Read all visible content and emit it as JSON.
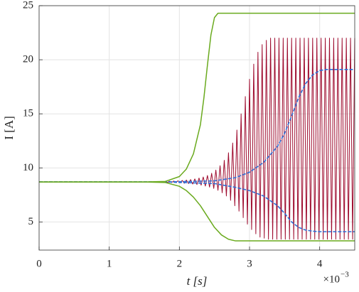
{
  "chart_data": {
    "type": "line",
    "xlabel": "t [s]",
    "ylabel": "I [A]",
    "x_scale_base": "×10",
    "x_scale_exponent": "−3",
    "xlim": [
      0,
      4.5
    ],
    "ylim": [
      2.4,
      25
    ],
    "xticks": [
      0,
      1,
      2,
      3,
      4
    ],
    "yticks": [
      5,
      10,
      15,
      20,
      25
    ],
    "grid": true,
    "series": [
      {
        "color": "#9e0b2e",
        "width": 1,
        "x": [
          0,
          1.77,
          1.8,
          1.83,
          1.86,
          1.89,
          1.92,
          1.95,
          1.98,
          2.01,
          2.04,
          2.07,
          2.1,
          2.13,
          2.16,
          2.19,
          2.22,
          2.25,
          2.28,
          2.31,
          2.34,
          2.37,
          2.4,
          2.43,
          2.46,
          2.49,
          2.52,
          2.55,
          2.58,
          2.61,
          2.64,
          2.67,
          2.7,
          2.73,
          2.76,
          2.79,
          2.82,
          2.85,
          2.88,
          2.91,
          2.94,
          2.97,
          3.0,
          3.03,
          3.06,
          3.09,
          3.12,
          3.15,
          3.18,
          3.21,
          3.24,
          3.27,
          3.3,
          3.33,
          3.36,
          3.39,
          3.42,
          3.45,
          3.48,
          3.51,
          3.54,
          3.57,
          3.6,
          3.63,
          3.66,
          3.69,
          3.72,
          3.75,
          3.78,
          3.81,
          3.84,
          3.87,
          3.9,
          3.93,
          3.96,
          3.99,
          4.02,
          4.05,
          4.08,
          4.11,
          4.14,
          4.17,
          4.2,
          4.23,
          4.26,
          4.29,
          4.32,
          4.35,
          4.38,
          4.41,
          4.44,
          4.47,
          4.5
        ],
        "values": [
          8.7,
          8.7,
          8.76,
          8.66,
          8.77,
          8.65,
          8.79,
          8.63,
          8.81,
          8.61,
          8.84,
          8.58,
          8.88,
          8.55,
          8.92,
          8.51,
          8.98,
          8.46,
          9.06,
          8.4,
          9.16,
          8.32,
          9.3,
          8.22,
          9.5,
          8.1,
          9.8,
          7.93,
          10.2,
          7.7,
          10.7,
          7.4,
          11.4,
          7.0,
          12.3,
          6.5,
          13.5,
          6.0,
          15.0,
          5.4,
          16.6,
          4.8,
          18.2,
          4.3,
          19.6,
          3.9,
          20.7,
          3.6,
          21.4,
          3.5,
          21.8,
          3.4,
          22.0,
          3.4,
          22.0,
          3.4,
          22.0,
          3.4,
          22.0,
          3.4,
          22.0,
          3.4,
          22.0,
          3.4,
          22.0,
          3.4,
          22.0,
          3.4,
          22.0,
          3.4,
          22.0,
          3.4,
          22.0,
          3.4,
          22.0,
          3.4,
          22.0,
          3.4,
          22.0,
          3.4,
          22.0,
          3.4,
          22.0,
          3.4,
          22.0,
          3.4,
          22.0,
          3.4,
          22.0,
          3.4,
          22.0,
          3.4,
          22.0
        ]
      },
      {
        "color": "#2f6fd6",
        "width": 1.6,
        "dash": true,
        "x": [
          0,
          1.8,
          2.5,
          2.8,
          3.0,
          3.2,
          3.4,
          3.5,
          3.6,
          3.7,
          3.8,
          3.9,
          4.0,
          4.1,
          4.5
        ],
        "values": [
          8.7,
          8.7,
          8.8,
          9.1,
          9.6,
          10.5,
          12.0,
          13.2,
          14.8,
          16.5,
          17.8,
          18.6,
          19.0,
          19.1,
          19.1
        ]
      },
      {
        "color": "#2f6fd6",
        "width": 1.6,
        "dash": true,
        "x": [
          0,
          1.8,
          2.5,
          2.8,
          3.0,
          3.2,
          3.4,
          3.5,
          3.6,
          3.7,
          3.8,
          3.9,
          4.0,
          4.1,
          4.5
        ],
        "values": [
          8.7,
          8.7,
          8.55,
          8.2,
          7.9,
          7.4,
          6.5,
          5.8,
          5.0,
          4.5,
          4.25,
          4.15,
          4.1,
          4.1,
          4.1
        ]
      },
      {
        "color": "#6aaa1e",
        "width": 1.5,
        "x": [
          0,
          1.5,
          1.8,
          2.0,
          2.1,
          2.2,
          2.3,
          2.35,
          2.4,
          2.45,
          2.5,
          2.55,
          2.6,
          4.5
        ],
        "values": [
          8.7,
          8.7,
          8.75,
          9.2,
          9.9,
          11.3,
          14.0,
          16.5,
          19.5,
          22.3,
          23.9,
          24.3,
          24.3,
          24.3
        ]
      },
      {
        "color": "#6aaa1e",
        "width": 1.5,
        "x": [
          0,
          1.5,
          1.8,
          2.0,
          2.1,
          2.2,
          2.3,
          2.4,
          2.5,
          2.6,
          2.7,
          2.8,
          4.5
        ],
        "values": [
          8.7,
          8.7,
          8.65,
          8.3,
          7.9,
          7.3,
          6.5,
          5.5,
          4.5,
          3.8,
          3.4,
          3.25,
          3.25
        ]
      }
    ]
  }
}
